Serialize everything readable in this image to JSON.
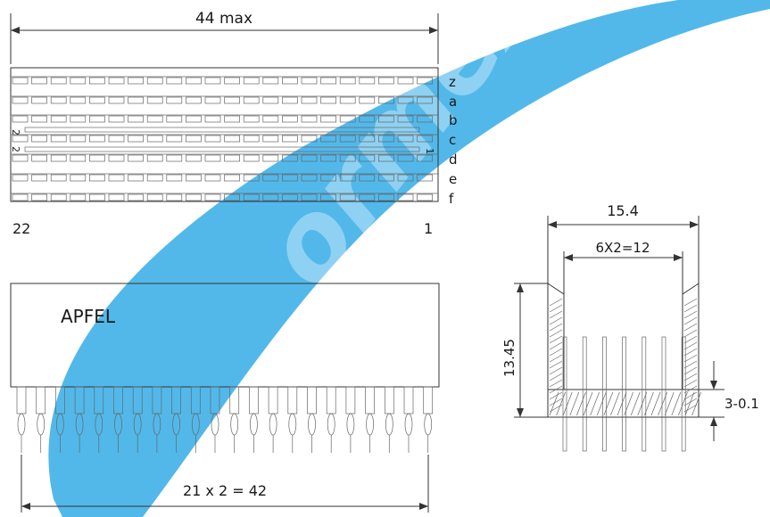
{
  "top_view": {
    "width_dim": "44 max",
    "row_labels": [
      "z",
      "a",
      "b",
      "c",
      "d",
      "e",
      "f"
    ],
    "pin_left": "22",
    "pin_right": "1",
    "side_left_top": "2",
    "side_left_bottom": "2",
    "side_right_mark": "1"
  },
  "front_view": {
    "brand": "APFEL",
    "pitch_dim": "21 x 2 = 42"
  },
  "side_view": {
    "width_dim": "15.4",
    "inner_dim": "6X2=12",
    "height_dim": "13.45",
    "base_dim": "3-0.1"
  },
  "watermark": {
    "text": "ormexco",
    "color": "#2aa7e6"
  }
}
